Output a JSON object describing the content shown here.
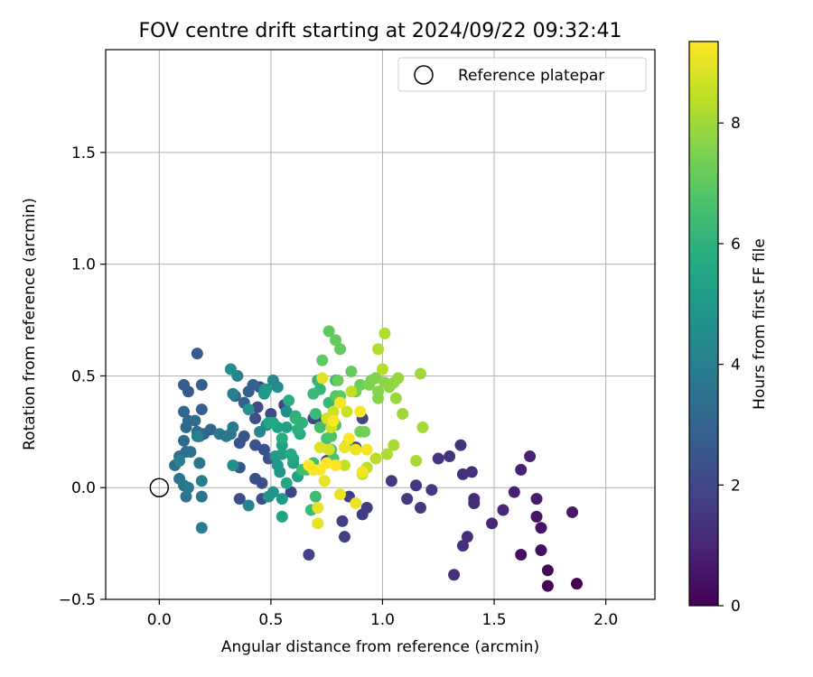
{
  "chart_data": {
    "type": "scatter",
    "title": "FOV centre drift starting at 2024/09/22 09:32:41",
    "xlabel": "Angular distance from reference (arcmin)",
    "ylabel": "Rotation from reference (arcmin)",
    "xlim": [
      -0.24,
      2.22
    ],
    "ylim": [
      -0.5,
      1.96
    ],
    "xticks": [
      0.0,
      0.5,
      1.0,
      1.5,
      2.0
    ],
    "xtick_labels": [
      "0.0",
      "0.5",
      "1.0",
      "1.5",
      "2.0"
    ],
    "yticks": [
      -0.5,
      0.0,
      0.5,
      1.0,
      1.5
    ],
    "ytick_labels": [
      "−0.5",
      "0.0",
      "0.5",
      "1.0",
      "1.5"
    ],
    "grid": true,
    "legend": {
      "position": "top-right",
      "label": "Reference platepar",
      "marker": "open-circle"
    },
    "reference_point": {
      "x": 0.0,
      "y": 0.0
    },
    "colorbar": {
      "label": "Hours from first FF file",
      "min": 0,
      "max": 9.35,
      "ticks": [
        0,
        2,
        4,
        6,
        8
      ],
      "tick_labels": [
        "0",
        "2",
        "4",
        "6",
        "8"
      ],
      "colormap": "viridis"
    },
    "points": [
      {
        "x": 1.87,
        "y": -0.43,
        "t": 0.0
      },
      {
        "x": 1.74,
        "y": -0.44,
        "t": 0.1
      },
      {
        "x": 1.74,
        "y": -0.37,
        "t": 0.2
      },
      {
        "x": 1.71,
        "y": -0.28,
        "t": 0.3
      },
      {
        "x": 1.62,
        "y": -0.3,
        "t": 0.4
      },
      {
        "x": 1.71,
        "y": -0.18,
        "t": 0.5
      },
      {
        "x": 1.69,
        "y": -0.13,
        "t": 0.55
      },
      {
        "x": 1.85,
        "y": -0.11,
        "t": 0.6
      },
      {
        "x": 1.69,
        "y": -0.05,
        "t": 0.7
      },
      {
        "x": 1.59,
        "y": -0.02,
        "t": 0.8
      },
      {
        "x": 1.62,
        "y": 0.08,
        "t": 0.85
      },
      {
        "x": 1.66,
        "y": 0.14,
        "t": 0.9
      },
      {
        "x": 1.54,
        "y": -0.1,
        "t": 1.0
      },
      {
        "x": 1.49,
        "y": -0.16,
        "t": 1.05
      },
      {
        "x": 1.41,
        "y": -0.05,
        "t": 1.1
      },
      {
        "x": 1.41,
        "y": -0.07,
        "t": 1.15
      },
      {
        "x": 1.38,
        "y": -0.22,
        "t": 1.2
      },
      {
        "x": 1.36,
        "y": -0.26,
        "t": 1.25
      },
      {
        "x": 1.32,
        "y": -0.39,
        "t": 1.3
      },
      {
        "x": 1.36,
        "y": 0.06,
        "t": 1.3
      },
      {
        "x": 1.4,
        "y": 0.07,
        "t": 1.35
      },
      {
        "x": 1.35,
        "y": 0.19,
        "t": 1.35
      },
      {
        "x": 1.3,
        "y": 0.14,
        "t": 1.4
      },
      {
        "x": 1.25,
        "y": 0.13,
        "t": 1.4
      },
      {
        "x": 1.22,
        "y": -0.01,
        "t": 1.45
      },
      {
        "x": 1.17,
        "y": -0.09,
        "t": 1.45
      },
      {
        "x": 1.15,
        "y": 0.01,
        "t": 1.5
      },
      {
        "x": 1.11,
        "y": -0.05,
        "t": 1.5
      },
      {
        "x": 1.04,
        "y": 0.03,
        "t": 1.55
      },
      {
        "x": 0.93,
        "y": -0.09,
        "t": 1.6
      },
      {
        "x": 0.91,
        "y": -0.12,
        "t": 1.6
      },
      {
        "x": 0.85,
        "y": -0.04,
        "t": 1.7
      },
      {
        "x": 0.82,
        "y": -0.15,
        "t": 1.7
      },
      {
        "x": 0.83,
        "y": -0.22,
        "t": 1.75
      },
      {
        "x": 0.67,
        "y": -0.3,
        "t": 1.8
      },
      {
        "x": 0.59,
        "y": -0.02,
        "t": 1.85
      },
      {
        "x": 0.69,
        "y": 0.31,
        "t": 1.9
      },
      {
        "x": 0.73,
        "y": 0.3,
        "t": 1.9
      },
      {
        "x": 0.91,
        "y": 0.31,
        "t": 1.9
      },
      {
        "x": 0.88,
        "y": 0.18,
        "t": 1.95
      },
      {
        "x": 0.75,
        "y": 0.12,
        "t": 2.0
      },
      {
        "x": 0.56,
        "y": 0.37,
        "t": 2.0
      },
      {
        "x": 0.5,
        "y": 0.33,
        "t": 2.1
      },
      {
        "x": 0.45,
        "y": 0.45,
        "t": 2.1
      },
      {
        "x": 0.44,
        "y": 0.36,
        "t": 2.15
      },
      {
        "x": 0.43,
        "y": 0.31,
        "t": 2.2
      },
      {
        "x": 0.36,
        "y": -0.05,
        "t": 2.2
      },
      {
        "x": 0.43,
        "y": 0.04,
        "t": 2.25
      },
      {
        "x": 0.46,
        "y": -0.05,
        "t": 2.3
      },
      {
        "x": 0.46,
        "y": 0.02,
        "t": 2.3
      },
      {
        "x": 0.49,
        "y": 0.13,
        "t": 2.35
      },
      {
        "x": 0.47,
        "y": 0.17,
        "t": 2.4
      },
      {
        "x": 0.43,
        "y": 0.19,
        "t": 2.4
      },
      {
        "x": 0.38,
        "y": 0.23,
        "t": 2.45
      },
      {
        "x": 0.36,
        "y": 0.2,
        "t": 2.5
      },
      {
        "x": 0.36,
        "y": 0.09,
        "t": 2.5
      },
      {
        "x": 0.17,
        "y": 0.6,
        "t": 2.6
      },
      {
        "x": 0.11,
        "y": 0.46,
        "t": 2.7
      },
      {
        "x": 0.13,
        "y": 0.43,
        "t": 2.7
      },
      {
        "x": 0.19,
        "y": 0.46,
        "t": 2.8
      },
      {
        "x": 0.19,
        "y": 0.35,
        "t": 2.8
      },
      {
        "x": 0.4,
        "y": 0.43,
        "t": 2.85
      },
      {
        "x": 0.42,
        "y": 0.46,
        "t": 2.9
      },
      {
        "x": 0.38,
        "y": 0.38,
        "t": 2.95
      },
      {
        "x": 0.34,
        "y": 0.41,
        "t": 3.0
      },
      {
        "x": 0.2,
        "y": 0.24,
        "t": 3.0
      },
      {
        "x": 0.23,
        "y": 0.26,
        "t": 3.05
      },
      {
        "x": 0.11,
        "y": 0.34,
        "t": 3.1
      },
      {
        "x": 0.12,
        "y": 0.27,
        "t": 3.15
      },
      {
        "x": 0.13,
        "y": 0.3,
        "t": 3.15
      },
      {
        "x": 0.17,
        "y": 0.25,
        "t": 3.2
      },
      {
        "x": 0.18,
        "y": 0.23,
        "t": 3.2
      },
      {
        "x": 0.16,
        "y": 0.3,
        "t": 3.25
      },
      {
        "x": 0.11,
        "y": 0.21,
        "t": 3.3
      },
      {
        "x": 0.09,
        "y": 0.14,
        "t": 3.3
      },
      {
        "x": 0.12,
        "y": 0.16,
        "t": 3.35
      },
      {
        "x": 0.14,
        "y": 0.16,
        "t": 3.4
      },
      {
        "x": 0.07,
        "y": 0.1,
        "t": 3.45
      },
      {
        "x": 0.09,
        "y": 0.04,
        "t": 3.5
      },
      {
        "x": 0.12,
        "y": -0.04,
        "t": 3.5
      },
      {
        "x": 0.11,
        "y": 0.01,
        "t": 3.55
      },
      {
        "x": 0.19,
        "y": -0.04,
        "t": 3.6
      },
      {
        "x": 0.18,
        "y": 0.11,
        "t": 3.6
      },
      {
        "x": 0.27,
        "y": 0.24,
        "t": 3.7
      },
      {
        "x": 0.3,
        "y": 0.23,
        "t": 3.7
      },
      {
        "x": 0.32,
        "y": 0.24,
        "t": 3.75
      },
      {
        "x": 0.33,
        "y": 0.27,
        "t": 3.8
      },
      {
        "x": 0.13,
        "y": 0.0,
        "t": 3.85
      },
      {
        "x": 0.19,
        "y": 0.03,
        "t": 3.9
      },
      {
        "x": 0.19,
        "y": -0.18,
        "t": 3.95
      },
      {
        "x": 0.17,
        "y": 0.23,
        "t": 4.0
      },
      {
        "x": 0.09,
        "y": 0.12,
        "t": 4.0
      },
      {
        "x": 0.33,
        "y": 0.42,
        "t": 4.05
      },
      {
        "x": 0.35,
        "y": 0.5,
        "t": 4.1
      },
      {
        "x": 0.4,
        "y": -0.08,
        "t": 4.2
      },
      {
        "x": 0.48,
        "y": 0.28,
        "t": 4.3
      },
      {
        "x": 0.45,
        "y": 0.25,
        "t": 4.35
      },
      {
        "x": 0.51,
        "y": 0.48,
        "t": 4.4
      },
      {
        "x": 0.53,
        "y": 0.45,
        "t": 4.45
      },
      {
        "x": 0.47,
        "y": 0.44,
        "t": 4.5
      },
      {
        "x": 0.57,
        "y": 0.34,
        "t": 4.55
      },
      {
        "x": 0.33,
        "y": 0.1,
        "t": 4.6
      },
      {
        "x": 0.32,
        "y": 0.53,
        "t": 4.6
      },
      {
        "x": 0.4,
        "y": 0.35,
        "t": 4.7
      },
      {
        "x": 0.49,
        "y": -0.04,
        "t": 4.75
      },
      {
        "x": 0.51,
        "y": -0.02,
        "t": 4.8
      },
      {
        "x": 0.54,
        "y": 0.07,
        "t": 4.9
      },
      {
        "x": 0.53,
        "y": 0.1,
        "t": 4.95
      },
      {
        "x": 0.55,
        "y": -0.05,
        "t": 5.0
      },
      {
        "x": 0.47,
        "y": 0.42,
        "t": 5.0
      },
      {
        "x": 0.48,
        "y": 0.44,
        "t": 5.05
      },
      {
        "x": 0.52,
        "y": 0.14,
        "t": 5.1
      },
      {
        "x": 0.6,
        "y": 0.11,
        "t": 5.15
      },
      {
        "x": 0.55,
        "y": 0.15,
        "t": 5.2
      },
      {
        "x": 0.55,
        "y": 0.19,
        "t": 5.25
      },
      {
        "x": 0.57,
        "y": 0.27,
        "t": 5.3
      },
      {
        "x": 0.53,
        "y": 0.27,
        "t": 5.35
      },
      {
        "x": 0.62,
        "y": 0.05,
        "t": 5.4
      },
      {
        "x": 0.6,
        "y": 0.13,
        "t": 5.45
      },
      {
        "x": 0.55,
        "y": -0.13,
        "t": 5.5
      },
      {
        "x": 0.51,
        "y": 0.29,
        "t": 5.55
      },
      {
        "x": 0.49,
        "y": 0.29,
        "t": 5.55
      },
      {
        "x": 0.57,
        "y": 0.02,
        "t": 5.6
      },
      {
        "x": 0.59,
        "y": 0.15,
        "t": 5.65
      },
      {
        "x": 0.63,
        "y": 0.24,
        "t": 5.7
      },
      {
        "x": 0.55,
        "y": 0.22,
        "t": 5.75
      },
      {
        "x": 0.58,
        "y": 0.39,
        "t": 5.8
      },
      {
        "x": 0.61,
        "y": 0.32,
        "t": 5.85
      },
      {
        "x": 0.62,
        "y": 0.26,
        "t": 5.9
      },
      {
        "x": 0.64,
        "y": 0.29,
        "t": 6.0
      },
      {
        "x": 0.61,
        "y": 0.31,
        "t": 6.0
      },
      {
        "x": 0.71,
        "y": 0.48,
        "t": 6.05
      },
      {
        "x": 0.72,
        "y": 0.44,
        "t": 6.1
      },
      {
        "x": 0.79,
        "y": 0.48,
        "t": 6.15
      },
      {
        "x": 0.76,
        "y": 0.38,
        "t": 6.2
      },
      {
        "x": 0.69,
        "y": 0.42,
        "t": 6.25
      },
      {
        "x": 0.7,
        "y": 0.33,
        "t": 6.3
      },
      {
        "x": 0.68,
        "y": -0.1,
        "t": 6.3
      },
      {
        "x": 0.7,
        "y": -0.04,
        "t": 6.35
      },
      {
        "x": 0.64,
        "y": 0.08,
        "t": 6.4
      },
      {
        "x": 0.69,
        "y": 0.11,
        "t": 6.45
      },
      {
        "x": 0.66,
        "y": 0.08,
        "t": 6.5
      },
      {
        "x": 0.72,
        "y": 0.27,
        "t": 6.55
      },
      {
        "x": 0.75,
        "y": 0.22,
        "t": 6.6
      },
      {
        "x": 0.77,
        "y": 0.17,
        "t": 6.65
      },
      {
        "x": 0.78,
        "y": 0.13,
        "t": 6.7
      },
      {
        "x": 0.77,
        "y": 0.23,
        "t": 6.75
      },
      {
        "x": 0.79,
        "y": 0.28,
        "t": 6.8
      },
      {
        "x": 0.84,
        "y": 0.19,
        "t": 6.85
      },
      {
        "x": 0.79,
        "y": 0.41,
        "t": 6.9
      },
      {
        "x": 0.81,
        "y": 0.41,
        "t": 6.95
      },
      {
        "x": 0.73,
        "y": 0.57,
        "t": 7.0
      },
      {
        "x": 0.76,
        "y": 0.7,
        "t": 7.0
      },
      {
        "x": 0.79,
        "y": 0.66,
        "t": 7.05
      },
      {
        "x": 0.81,
        "y": 0.62,
        "t": 7.1
      },
      {
        "x": 0.86,
        "y": 0.52,
        "t": 7.15
      },
      {
        "x": 0.8,
        "y": 0.48,
        "t": 7.2
      },
      {
        "x": 0.9,
        "y": 0.46,
        "t": 7.25
      },
      {
        "x": 0.88,
        "y": 0.43,
        "t": 7.3
      },
      {
        "x": 0.9,
        "y": 0.25,
        "t": 7.35
      },
      {
        "x": 0.92,
        "y": 0.25,
        "t": 7.4
      },
      {
        "x": 0.95,
        "y": 0.48,
        "t": 7.45
      },
      {
        "x": 0.94,
        "y": 0.46,
        "t": 7.5
      },
      {
        "x": 0.97,
        "y": 0.49,
        "t": 7.55
      },
      {
        "x": 0.98,
        "y": 0.43,
        "t": 7.6
      },
      {
        "x": 0.98,
        "y": 0.4,
        "t": 7.65
      },
      {
        "x": 1.01,
        "y": 0.47,
        "t": 7.7
      },
      {
        "x": 1.03,
        "y": 0.45,
        "t": 7.75
      },
      {
        "x": 1.05,
        "y": 0.47,
        "t": 7.8
      },
      {
        "x": 1.07,
        "y": 0.49,
        "t": 7.85
      },
      {
        "x": 1.06,
        "y": 0.4,
        "t": 7.9
      },
      {
        "x": 1.09,
        "y": 0.33,
        "t": 7.95
      },
      {
        "x": 1.17,
        "y": 0.51,
        "t": 8.0
      },
      {
        "x": 1.18,
        "y": 0.27,
        "t": 8.05
      },
      {
        "x": 1.15,
        "y": 0.12,
        "t": 8.1
      },
      {
        "x": 1.05,
        "y": 0.19,
        "t": 8.15
      },
      {
        "x": 1.02,
        "y": 0.15,
        "t": 8.2
      },
      {
        "x": 0.98,
        "y": 0.62,
        "t": 8.2
      },
      {
        "x": 1.01,
        "y": 0.69,
        "t": 8.25
      },
      {
        "x": 1.0,
        "y": 0.53,
        "t": 8.3
      },
      {
        "x": 0.97,
        "y": 0.13,
        "t": 8.35
      },
      {
        "x": 0.93,
        "y": 0.09,
        "t": 8.4
      },
      {
        "x": 0.91,
        "y": 0.06,
        "t": 8.45
      },
      {
        "x": 0.86,
        "y": 0.43,
        "t": 8.5
      },
      {
        "x": 0.83,
        "y": 0.1,
        "t": 8.55
      },
      {
        "x": 0.84,
        "y": 0.34,
        "t": 8.6
      },
      {
        "x": 0.78,
        "y": 0.34,
        "t": 8.65
      },
      {
        "x": 0.75,
        "y": 0.31,
        "t": 8.7
      },
      {
        "x": 0.77,
        "y": 0.27,
        "t": 8.75
      },
      {
        "x": 0.76,
        "y": 0.17,
        "t": 8.8
      },
      {
        "x": 0.72,
        "y": 0.18,
        "t": 8.85
      },
      {
        "x": 0.73,
        "y": 0.49,
        "t": 8.9
      },
      {
        "x": 0.71,
        "y": -0.09,
        "t": 8.95
      },
      {
        "x": 0.71,
        "y": -0.16,
        "t": 9.0
      },
      {
        "x": 0.74,
        "y": 0.03,
        "t": 9.0
      },
      {
        "x": 0.81,
        "y": -0.03,
        "t": 9.05
      },
      {
        "x": 0.88,
        "y": -0.07,
        "t": 9.1
      },
      {
        "x": 0.83,
        "y": 0.18,
        "t": 9.1
      },
      {
        "x": 0.88,
        "y": 0.17,
        "t": 9.15
      },
      {
        "x": 0.91,
        "y": 0.07,
        "t": 9.2
      },
      {
        "x": 0.93,
        "y": 0.17,
        "t": 9.2
      },
      {
        "x": 0.9,
        "y": 0.34,
        "t": 9.25
      },
      {
        "x": 0.81,
        "y": 0.38,
        "t": 9.25
      },
      {
        "x": 0.78,
        "y": 0.3,
        "t": 9.3
      },
      {
        "x": 0.72,
        "y": 0.08,
        "t": 9.3
      },
      {
        "x": 0.69,
        "y": 0.08,
        "t": 9.3
      },
      {
        "x": 0.67,
        "y": 0.1,
        "t": 9.35
      },
      {
        "x": 0.75,
        "y": 0.11,
        "t": 9.35
      },
      {
        "x": 0.85,
        "y": 0.22,
        "t": 9.35
      },
      {
        "x": 0.79,
        "y": 0.1,
        "t": 9.35
      }
    ]
  }
}
